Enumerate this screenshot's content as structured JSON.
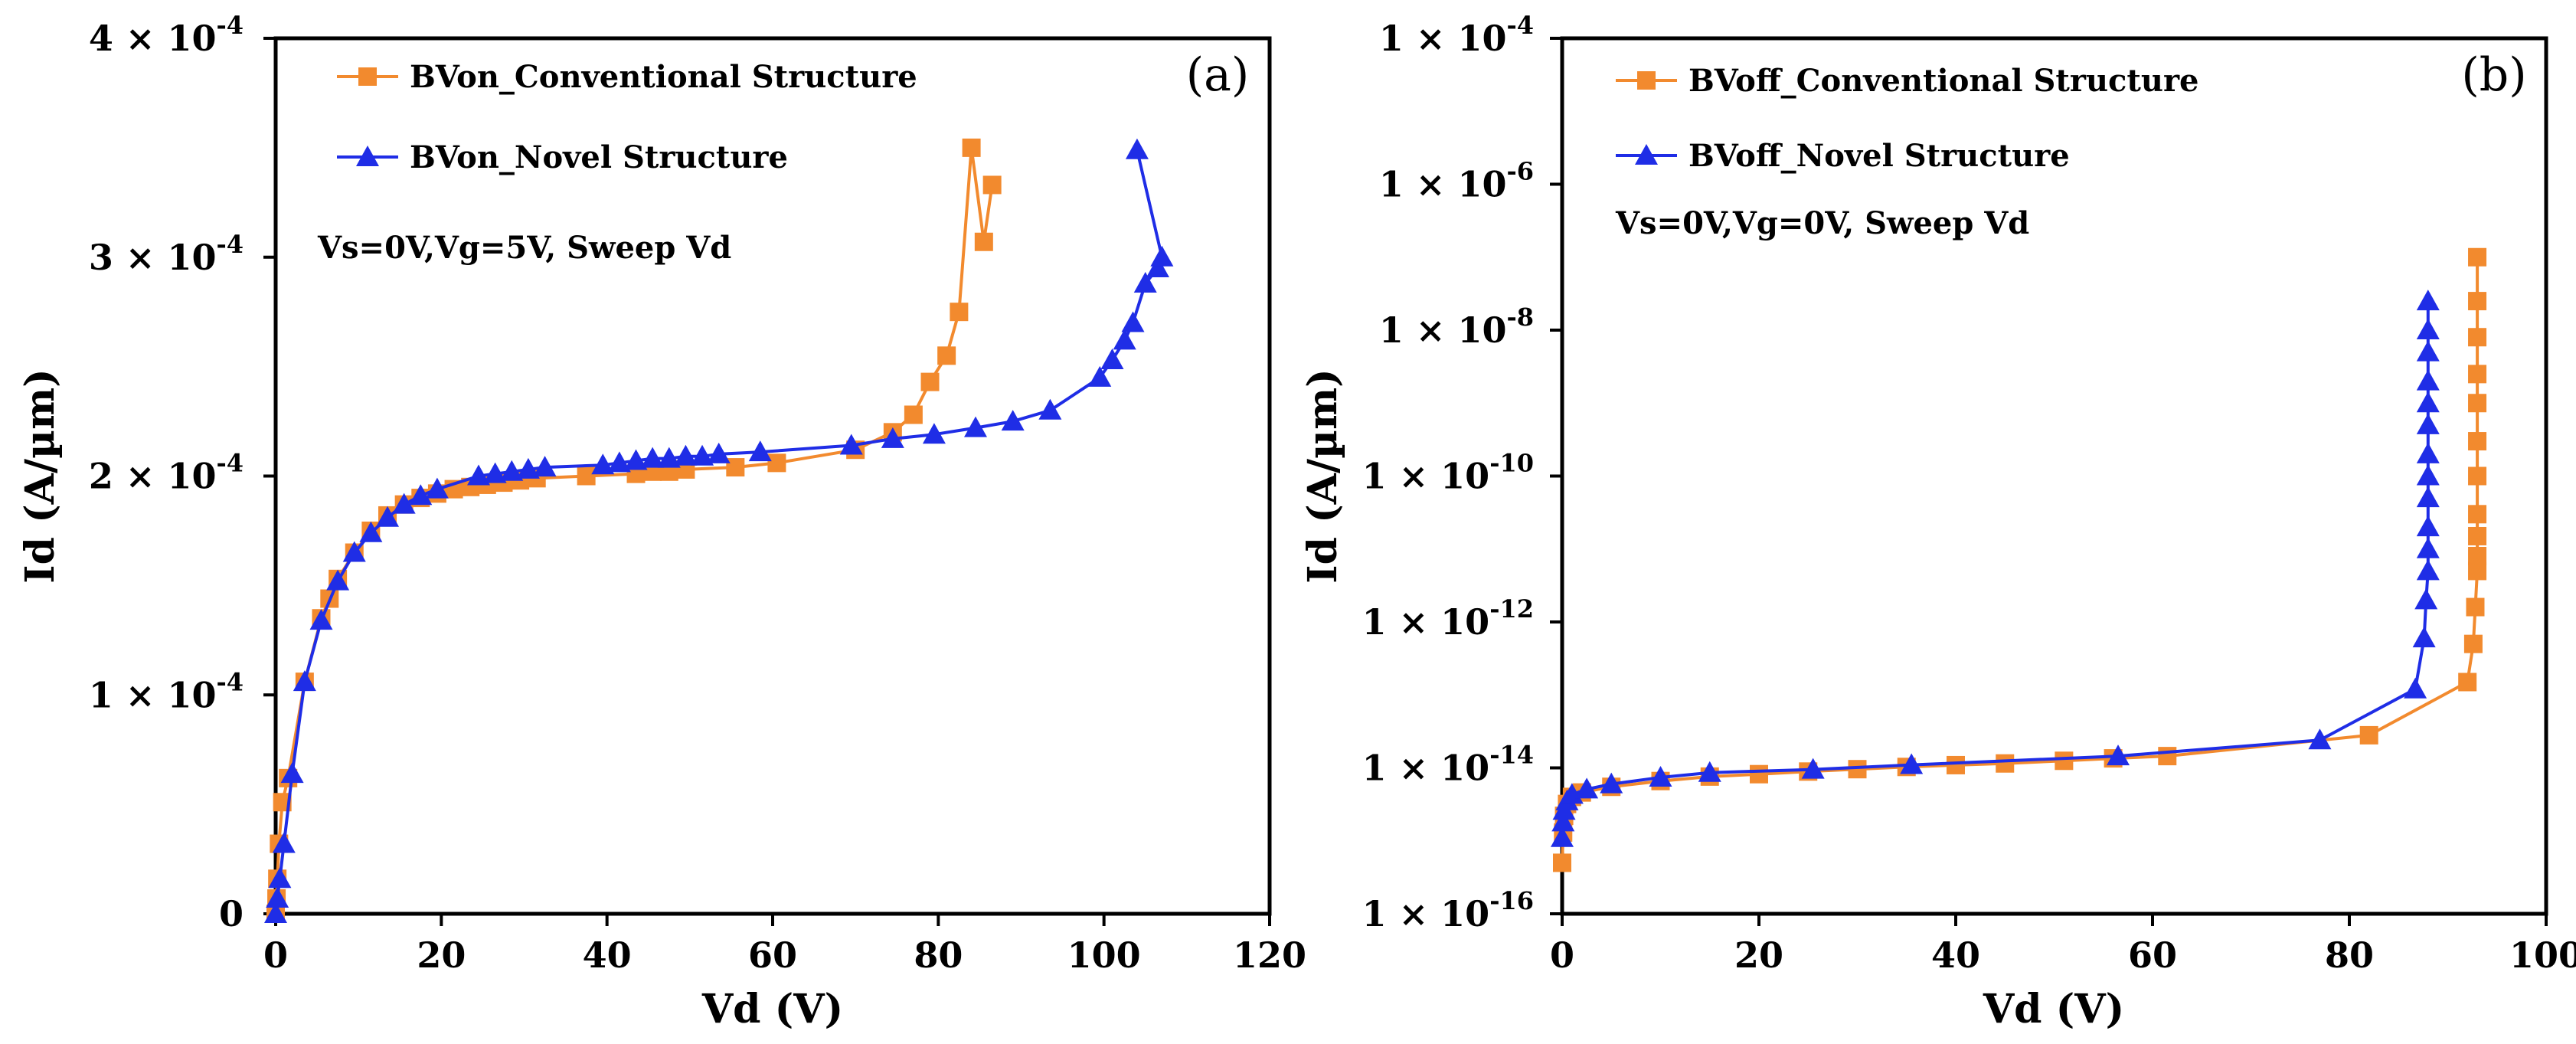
{
  "colors": {
    "conventional": "#F28A2E",
    "novel": "#1F2DE6"
  },
  "chart_data": [
    {
      "type": "line",
      "panel_label": "(a)",
      "xlabel": "Vd (V)",
      "ylabel": "Id (A/µm)",
      "xlim": [
        0,
        120
      ],
      "ylim": [
        0,
        0.0004
      ],
      "yscale": "linear",
      "grid": false,
      "legend_position": "top-left",
      "annotation": "Vs=0V,Vg=5V, Sweep Vd",
      "x_ticks": [
        {
          "value": 0,
          "label": "0"
        },
        {
          "value": 20,
          "label": "20"
        },
        {
          "value": 40,
          "label": "40"
        },
        {
          "value": 60,
          "label": "60"
        },
        {
          "value": 80,
          "label": "80"
        },
        {
          "value": 100,
          "label": "100"
        },
        {
          "value": 120,
          "label": "120"
        }
      ],
      "y_ticks": [
        {
          "value": 0,
          "base": "0",
          "exp": ""
        },
        {
          "value": 0.0001,
          "base": "1 × 10",
          "exp": "-4"
        },
        {
          "value": 0.0002,
          "base": "2 × 10",
          "exp": "-4"
        },
        {
          "value": 0.0003,
          "base": "3 × 10",
          "exp": "-4"
        },
        {
          "value": 0.0004,
          "base": "4 × 10",
          "exp": "-4"
        }
      ],
      "series": [
        {
          "name": "BVon_Conventional Structure",
          "color_key": "conventional",
          "marker": "square",
          "x": [
            0,
            0.1,
            0.2,
            0.4,
            0.8,
            1.5,
            3.5,
            5.5,
            6.5,
            7.5,
            9.5,
            11.5,
            13.5,
            15.5,
            17.5,
            19.5,
            21.5,
            23.5,
            25.5,
            27.5,
            29.5,
            31.5,
            37.5,
            43.5,
            45.5,
            47.5,
            49.5,
            55.5,
            60.5,
            70,
            74.5,
            77,
            79,
            81,
            82.5,
            84,
            85.5,
            86.5
          ],
          "y": [
            0,
            7e-06,
            1.6e-05,
            3.2e-05,
            5.1e-05,
            6.2e-05,
            0.000106,
            0.000135,
            0.000144,
            0.000153,
            0.000165,
            0.000175,
            0.000182,
            0.000187,
            0.00019,
            0.000192,
            0.000194,
            0.000195,
            0.000196,
            0.000197,
            0.000198,
            0.000199,
            0.0002,
            0.000201,
            0.000202,
            0.000202,
            0.000203,
            0.000204,
            0.000206,
            0.000212,
            0.00022,
            0.000228,
            0.000243,
            0.000255,
            0.000275,
            0.00035,
            0.000307,
            0.000333
          ]
        },
        {
          "name": "BVon_Novel Structure",
          "color_key": "novel",
          "marker": "triangle",
          "x": [
            0,
            0.2,
            0.5,
            1,
            2,
            3.5,
            5.5,
            7.5,
            9.5,
            11.5,
            13.5,
            15.5,
            17.5,
            19.5,
            24.5,
            26.5,
            28.5,
            30.5,
            32.5,
            39.5,
            41.5,
            43.5,
            45.5,
            47.5,
            49.5,
            51.5,
            53.5,
            58.5,
            69.5,
            74.5,
            79.5,
            84.5,
            89,
            93.5,
            99.5,
            101,
            102.5,
            103.5,
            105,
            106.5,
            107,
            104
          ],
          "y": [
            0,
            7e-06,
            1.6e-05,
            3.2e-05,
            6.4e-05,
            0.000106,
            0.000134,
            0.000152,
            0.000165,
            0.000174,
            0.000181,
            0.000187,
            0.000191,
            0.000194,
            0.0002,
            0.000201,
            0.000202,
            0.000203,
            0.000204,
            0.000205,
            0.000206,
            0.000207,
            0.000208,
            0.000208,
            0.000209,
            0.000209,
            0.00021,
            0.000211,
            0.000214,
            0.000217,
            0.000219,
            0.000222,
            0.000225,
            0.00023,
            0.000245,
            0.000253,
            0.000262,
            0.00027,
            0.000288,
            0.000295,
            0.0003,
            0.000349
          ]
        }
      ]
    },
    {
      "type": "line",
      "panel_label": "(b)",
      "xlabel": "Vd (V)",
      "ylabel": "Id (A/µm)",
      "xlim": [
        0,
        100
      ],
      "ylim": [
        1e-16,
        0.0001
      ],
      "yscale": "log",
      "grid": false,
      "legend_position": "top-left",
      "annotation": "Vs=0V,Vg=0V, Sweep Vd",
      "x_ticks": [
        {
          "value": 0,
          "label": "0"
        },
        {
          "value": 20,
          "label": "20"
        },
        {
          "value": 40,
          "label": "40"
        },
        {
          "value": 60,
          "label": "60"
        },
        {
          "value": 80,
          "label": "80"
        },
        {
          "value": 100,
          "label": "100"
        }
      ],
      "y_ticks": [
        {
          "value": 1e-16,
          "base": "1 × 10",
          "exp": "-16"
        },
        {
          "value": 1e-14,
          "base": "1 × 10",
          "exp": "-14"
        },
        {
          "value": 1e-12,
          "base": "1 × 10",
          "exp": "-12"
        },
        {
          "value": 1e-10,
          "base": "1 × 10",
          "exp": "-10"
        },
        {
          "value": 1e-08,
          "base": "1 × 10",
          "exp": "-8"
        },
        {
          "value": 1e-06,
          "base": "1 × 10",
          "exp": "-6"
        },
        {
          "value": 0.0001,
          "base": "1 × 10",
          "exp": "-4"
        }
      ],
      "series": [
        {
          "name": "BVoff_Conventional Structure",
          "color_key": "conventional",
          "marker": "square",
          "x": [
            0,
            0.1,
            0.2,
            0.5,
            1,
            2,
            5,
            10,
            15,
            20,
            25,
            30,
            35,
            40,
            45,
            51,
            56,
            61.5,
            82,
            92,
            92.6,
            92.8,
            93,
            93,
            93,
            93,
            93,
            93,
            93,
            93,
            93,
            93,
            93
          ],
          "y": [
            5e-16,
            1.3e-15,
            2.2e-15,
            3.2e-15,
            4e-15,
            4.6e-15,
            5.5e-15,
            6.6e-15,
            7.6e-15,
            8.2e-15,
            8.9e-15,
            9.6e-15,
            1.03e-14,
            1.09e-14,
            1.15e-14,
            1.25e-14,
            1.35e-14,
            1.45e-14,
            2.8e-14,
            1.5e-13,
            5e-13,
            1.6e-12,
            5e-12,
            8e-12,
            1.5e-11,
            3e-11,
            1e-10,
            3e-10,
            1e-09,
            2.5e-09,
            8e-09,
            2.5e-08,
            1e-07
          ]
        },
        {
          "name": "BVoff_Novel Structure",
          "color_key": "novel",
          "marker": "triangle",
          "x": [
            0,
            0.1,
            0.2,
            0.5,
            1,
            2.5,
            5,
            10,
            15,
            25.5,
            35.5,
            56.5,
            77,
            86.7,
            87.6,
            87.8,
            88,
            88,
            88,
            88,
            88,
            88,
            88,
            88,
            88,
            88,
            88,
            88
          ],
          "y": [
            1.1e-15,
            1.8e-15,
            2.6e-15,
            3.5e-15,
            4.3e-15,
            5.1e-15,
            6e-15,
            7.4e-15,
            8.6e-15,
            9.5e-15,
            1.1e-14,
            1.45e-14,
            2.4e-14,
            1.2e-13,
            6e-13,
            2e-12,
            5e-12,
            1e-11,
            2e-11,
            5e-11,
            1e-10,
            2e-10,
            5e-10,
            1e-09,
            2e-09,
            5e-09,
            1e-08,
            2.5e-08
          ]
        }
      ]
    }
  ]
}
